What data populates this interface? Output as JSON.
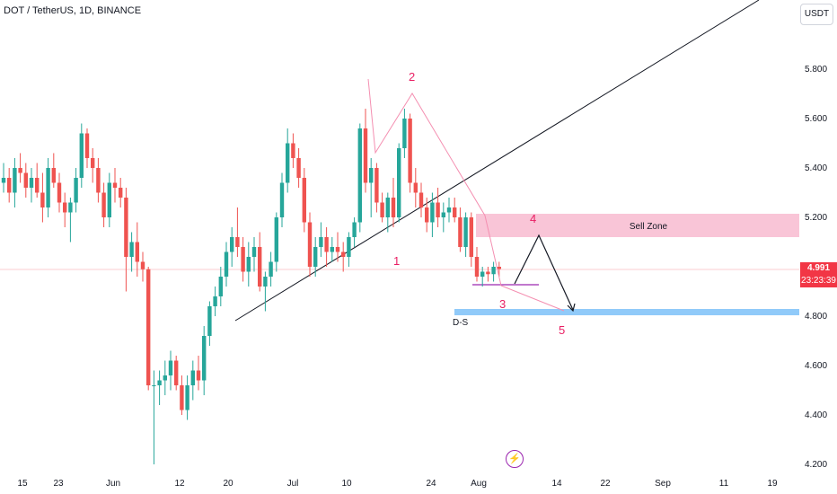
{
  "header": {
    "title": "DOT / TetherUS, 1D, BINANCE"
  },
  "currency_button": {
    "label": "USDT"
  },
  "price_scale": {
    "ticks": [
      "5.800",
      "5.600",
      "5.400",
      "5.200",
      "5.000",
      "4.800",
      "4.600",
      "4.400",
      "4.200"
    ],
    "last_price": "4.991",
    "countdown": "23:23:39"
  },
  "time_scale": {
    "ticks": [
      "15",
      "23",
      "Jun",
      "12",
      "20",
      "Jul",
      "10",
      "24",
      "Aug",
      "14",
      "22",
      "Sep",
      "11",
      "19"
    ]
  },
  "annotations": {
    "wave_1": "1",
    "wave_2": "2",
    "wave_3": "3",
    "wave_4": "4",
    "wave_5": "5",
    "sell_zone": "Sell Zone",
    "demand_label": "D-S"
  },
  "colors": {
    "up": "#26a69a",
    "down": "#ef5350",
    "sell_zone": "#f8bbd0",
    "demand_zone": "#90caf9",
    "last_price": "#f23645",
    "wave_text": "#e91e63",
    "lightning": "#9c27b0"
  },
  "icons": {
    "lightning": "lightning-icon"
  },
  "chart_data": {
    "type": "candlestick",
    "ylim": [
      4.18,
      6.1
    ],
    "candles": [
      [
        5.34,
        5.42,
        5.3,
        5.36
      ],
      [
        5.36,
        5.4,
        5.26,
        5.3
      ],
      [
        5.3,
        5.44,
        5.24,
        5.4
      ],
      [
        5.4,
        5.46,
        5.34,
        5.38
      ],
      [
        5.38,
        5.42,
        5.28,
        5.32
      ],
      [
        5.32,
        5.4,
        5.26,
        5.36
      ],
      [
        5.36,
        5.42,
        5.28,
        5.3
      ],
      [
        5.3,
        5.38,
        5.18,
        5.24
      ],
      [
        5.24,
        5.44,
        5.2,
        5.4
      ],
      [
        5.4,
        5.46,
        5.32,
        5.34
      ],
      [
        5.34,
        5.38,
        5.22,
        5.26
      ],
      [
        5.26,
        5.3,
        5.16,
        5.22
      ],
      [
        5.22,
        5.28,
        5.1,
        5.26
      ],
      [
        5.26,
        5.4,
        5.22,
        5.36
      ],
      [
        5.36,
        5.58,
        5.32,
        5.54
      ],
      [
        5.54,
        5.56,
        5.4,
        5.44
      ],
      [
        5.44,
        5.48,
        5.34,
        5.4
      ],
      [
        5.4,
        5.44,
        5.26,
        5.3
      ],
      [
        5.3,
        5.34,
        5.16,
        5.2
      ],
      [
        5.2,
        5.38,
        5.16,
        5.34
      ],
      [
        5.34,
        5.4,
        5.26,
        5.32
      ],
      [
        5.32,
        5.36,
        5.24,
        5.28
      ],
      [
        5.28,
        5.32,
        4.9,
        5.04
      ],
      [
        5.04,
        5.14,
        4.98,
        5.1
      ],
      [
        5.1,
        5.18,
        4.96,
        5.02
      ],
      [
        5.02,
        5.06,
        4.94,
        4.99
      ],
      [
        4.99,
        5.0,
        4.5,
        4.52
      ],
      [
        4.52,
        4.58,
        4.2,
        4.52
      ],
      [
        4.52,
        4.58,
        4.44,
        4.54
      ],
      [
        4.54,
        4.62,
        4.48,
        4.56
      ],
      [
        4.56,
        4.66,
        4.5,
        4.62
      ],
      [
        4.62,
        4.64,
        4.5,
        4.52
      ],
      [
        4.52,
        4.56,
        4.4,
        4.42
      ],
      [
        4.42,
        4.56,
        4.38,
        4.52
      ],
      [
        4.52,
        4.62,
        4.46,
        4.58
      ],
      [
        4.58,
        4.64,
        4.5,
        4.54
      ],
      [
        4.54,
        4.76,
        4.48,
        4.72
      ],
      [
        4.72,
        4.86,
        4.68,
        4.84
      ],
      [
        4.84,
        4.92,
        4.8,
        4.88
      ],
      [
        4.88,
        5.0,
        4.84,
        4.96
      ],
      [
        4.96,
        5.1,
        4.92,
        5.06
      ],
      [
        5.06,
        5.16,
        5.0,
        5.12
      ],
      [
        5.12,
        5.24,
        5.04,
        5.08
      ],
      [
        5.08,
        5.12,
        4.94,
        4.98
      ],
      [
        4.98,
        5.1,
        4.92,
        5.04
      ],
      [
        5.04,
        5.12,
        4.98,
        5.08
      ],
      [
        5.08,
        5.14,
        4.9,
        4.92
      ],
      [
        4.92,
        4.98,
        4.82,
        4.96
      ],
      [
        4.96,
        5.06,
        4.92,
        5.02
      ],
      [
        5.02,
        5.22,
        4.98,
        5.2
      ],
      [
        5.2,
        5.38,
        5.16,
        5.34
      ],
      [
        5.34,
        5.56,
        5.3,
        5.5
      ],
      [
        5.5,
        5.54,
        5.4,
        5.44
      ],
      [
        5.44,
        5.48,
        5.32,
        5.36
      ],
      [
        5.36,
        5.4,
        5.14,
        5.18
      ],
      [
        5.18,
        5.22,
        4.96,
        5.0
      ],
      [
        5.0,
        5.12,
        4.96,
        5.08
      ],
      [
        5.08,
        5.18,
        5.04,
        5.12
      ],
      [
        5.12,
        5.16,
        5.0,
        5.06
      ],
      [
        5.06,
        5.12,
        5.02,
        5.08
      ],
      [
        5.08,
        5.14,
        5.02,
        5.06
      ],
      [
        5.06,
        5.1,
        4.98,
        5.04
      ],
      [
        5.04,
        5.14,
        5.0,
        5.12
      ],
      [
        5.12,
        5.2,
        5.08,
        5.18
      ],
      [
        5.18,
        5.58,
        5.14,
        5.56
      ],
      [
        5.56,
        5.64,
        5.3,
        5.34
      ],
      [
        5.34,
        5.44,
        5.2,
        5.4
      ],
      [
        5.4,
        5.42,
        5.22,
        5.26
      ],
      [
        5.26,
        5.3,
        5.18,
        5.2
      ],
      [
        5.2,
        5.3,
        5.14,
        5.28
      ],
      [
        5.28,
        5.36,
        5.16,
        5.2
      ],
      [
        5.2,
        5.5,
        5.18,
        5.48
      ],
      [
        5.48,
        5.64,
        5.44,
        5.6
      ],
      [
        5.6,
        5.62,
        5.3,
        5.34
      ],
      [
        5.34,
        5.4,
        5.24,
        5.3
      ],
      [
        5.3,
        5.34,
        5.2,
        5.24
      ],
      [
        5.24,
        5.28,
        5.14,
        5.18
      ],
      [
        5.18,
        5.3,
        5.12,
        5.26
      ],
      [
        5.26,
        5.32,
        5.16,
        5.2
      ],
      [
        5.2,
        5.26,
        5.14,
        5.22
      ],
      [
        5.22,
        5.28,
        5.18,
        5.24
      ],
      [
        5.24,
        5.28,
        5.18,
        5.2
      ],
      [
        5.2,
        5.24,
        5.06,
        5.08
      ],
      [
        5.08,
        5.22,
        5.04,
        5.2
      ],
      [
        5.2,
        5.22,
        5.0,
        5.04
      ],
      [
        5.04,
        5.08,
        4.94,
        4.96
      ],
      [
        4.96,
        5.0,
        4.92,
        4.98
      ],
      [
        4.98,
        5.0,
        4.94,
        4.97
      ],
      [
        4.97,
        5.02,
        4.94,
        5.0
      ],
      [
        5.0,
        5.02,
        4.96,
        4.991
      ]
    ]
  }
}
